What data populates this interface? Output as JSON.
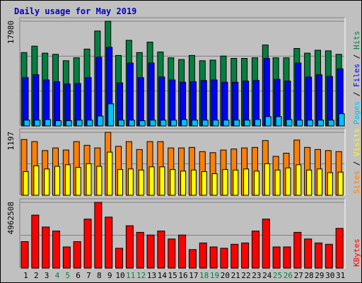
{
  "title": "Daily usage for May 2019",
  "colors": {
    "background": "#c0c0c0",
    "title": "#0000c0",
    "hits": "#008040",
    "files": "#0000ff",
    "pages": "#00c0ff",
    "visits": "#ffff00",
    "sites": "#ff8000",
    "kbytes": "#ff0000",
    "weekend_day": "#008040",
    "weekday": "#000000"
  },
  "chart_data": [
    {
      "type": "bar",
      "panel": "top",
      "ymax_label": "17980",
      "ylim": [
        0,
        17980
      ],
      "legend": [
        {
          "label": "Pages",
          "color": "#00c0ff"
        },
        {
          "label": "Files",
          "color": "#0000ff"
        },
        {
          "label": "Hits",
          "color": "#008040"
        }
      ],
      "legend_separator": " / ",
      "categories": [
        "1",
        "2",
        "3",
        "4",
        "5",
        "6",
        "7",
        "8",
        "9",
        "10",
        "11",
        "12",
        "13",
        "14",
        "15",
        "16",
        "17",
        "18",
        "19",
        "20",
        "21",
        "22",
        "23",
        "24",
        "25",
        "26",
        "27",
        "28",
        "29",
        "30",
        "31"
      ],
      "series": [
        {
          "name": "Hits",
          "values": [
            12600,
            13700,
            12500,
            12300,
            11200,
            11700,
            13200,
            16300,
            17980,
            12100,
            14700,
            12600,
            14400,
            12700,
            11700,
            11400,
            12100,
            11200,
            11300,
            12000,
            11600,
            11600,
            11700,
            13900,
            11700,
            11700,
            13300,
            12500,
            13000,
            12900,
            12300
          ]
        },
        {
          "name": "Files",
          "values": [
            8300,
            8800,
            7900,
            7600,
            7200,
            7300,
            8300,
            11800,
            13500,
            7400,
            10800,
            8300,
            10800,
            8400,
            7900,
            7500,
            7600,
            7800,
            7900,
            7500,
            7500,
            7700,
            7800,
            11600,
            8000,
            7700,
            10800,
            8400,
            8800,
            8500,
            9800
          ]
        },
        {
          "name": "Pages",
          "values": [
            1000,
            1000,
            1100,
            900,
            900,
            1000,
            1000,
            1700,
            3800,
            1000,
            1000,
            900,
            1000,
            1000,
            1000,
            1100,
            1000,
            1000,
            1000,
            1000,
            1000,
            1000,
            1100,
            1600,
            1600,
            1100,
            1000,
            1000,
            1000,
            1000,
            2100
          ]
        }
      ]
    },
    {
      "type": "bar",
      "panel": "middle",
      "ymax_label": "1197",
      "ylim": [
        0,
        1197
      ],
      "legend": [
        {
          "label": "Sites",
          "color": "#ff8000"
        },
        {
          "label": "Visits",
          "color": "#ffff00"
        }
      ],
      "legend_separator": " / ",
      "categories": [
        "1",
        "2",
        "3",
        "4",
        "5",
        "6",
        "7",
        "8",
        "9",
        "10",
        "11",
        "12",
        "13",
        "14",
        "15",
        "16",
        "17",
        "18",
        "19",
        "20",
        "21",
        "22",
        "23",
        "24",
        "25",
        "26",
        "27",
        "28",
        "29",
        "30",
        "31"
      ],
      "series": [
        {
          "name": "Sites",
          "values": [
            1060,
            1020,
            850,
            900,
            860,
            1020,
            950,
            900,
            1197,
            930,
            1020,
            870,
            1020,
            1020,
            900,
            900,
            910,
            830,
            810,
            860,
            880,
            900,
            910,
            1040,
            740,
            800,
            1050,
            910,
            870,
            850,
            830
          ]
        },
        {
          "name": "Visits",
          "values": [
            450,
            560,
            500,
            550,
            580,
            530,
            600,
            550,
            820,
            490,
            500,
            480,
            540,
            540,
            490,
            460,
            480,
            450,
            410,
            490,
            480,
            500,
            460,
            600,
            480,
            520,
            580,
            480,
            500,
            430,
            440
          ]
        }
      ]
    },
    {
      "type": "bar",
      "panel": "bottom",
      "ymax_label": "4962508",
      "ylim": [
        0,
        4962508
      ],
      "legend": [
        {
          "label": "KBytes",
          "color": "#ff0000"
        }
      ],
      "legend_separator": "",
      "categories": [
        "1",
        "2",
        "3",
        "4",
        "5",
        "6",
        "7",
        "8",
        "9",
        "10",
        "11",
        "12",
        "13",
        "14",
        "15",
        "16",
        "17",
        "18",
        "19",
        "20",
        "21",
        "22",
        "23",
        "24",
        "25",
        "26",
        "27",
        "28",
        "29",
        "30",
        "31"
      ],
      "series": [
        {
          "name": "KBytes",
          "values": [
            2000000,
            4000000,
            3100000,
            2800000,
            1600000,
            2000000,
            3700000,
            4962508,
            3850000,
            1500000,
            3200000,
            2700000,
            2500000,
            2800000,
            2200000,
            2500000,
            1400000,
            1900000,
            1600000,
            1500000,
            1800000,
            1900000,
            2800000,
            3700000,
            1600000,
            1600000,
            2700000,
            2200000,
            1900000,
            1800000,
            3000000
          ]
        }
      ]
    }
  ],
  "weekend_days": [
    "4",
    "5",
    "11",
    "12",
    "18",
    "19",
    "25",
    "26"
  ]
}
